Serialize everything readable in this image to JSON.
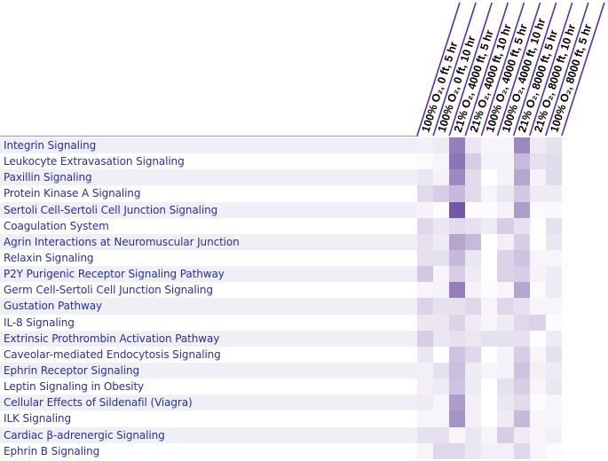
{
  "chart_data": {
    "type": "heatmap",
    "title": "",
    "colormap": {
      "low": "#ffffff",
      "high": "#5a3a96"
    },
    "columns": [
      "100% O₂, 0 ft, 5 hr",
      "100% O₂, 0 ft, 10 hr",
      "21% O₂, 4000 ft, 5 hr",
      "21% O₂, 4000 ft, 10 hr",
      "100% O₂, 4000 ft, 5 hr",
      "100% O₂, 4000 ft, 10 hr",
      "21% O₂, 8000 ft, 5 hr",
      "21% O₂, 8000 ft, 10 hr",
      "100% O₂, 8000 ft, 5 hr"
    ],
    "rows": [
      "Integrin Signaling",
      "Leukocyte Extravasation Signaling",
      "Paxillin Signaling",
      "Protein Kinase A Signaling",
      "Sertoli Cell-Sertoli Cell Junction Signaling",
      "Coagulation System",
      "Agrin Interactions at Neuromuscular Junction",
      "Relaxin Signaling",
      "P2Y Purigenic Receptor Signaling Pathway",
      "Germ Cell-Sertoli Cell Junction Signaling",
      "Gustation Pathway",
      "IL-8 Signaling",
      "Extrinsic Prothrombin Activation Pathway",
      "Caveolar-mediated Endocytosis Signaling",
      "Ephrin Receptor Signaling",
      "Leptin Signaling in Obesity",
      "Cellular Effects of Sildenafil (Viagra)",
      "ILK Signaling",
      "Cardiac β-adrenergic Signaling",
      "Ephrin B Signaling"
    ],
    "values": [
      [
        0.08,
        0.1,
        0.65,
        0.12,
        0.05,
        0.05,
        0.6,
        0.1,
        0.15
      ],
      [
        0.03,
        0.05,
        0.7,
        0.25,
        0.06,
        0.06,
        0.35,
        0.15,
        0.18
      ],
      [
        0.12,
        0.06,
        0.6,
        0.18,
        0.0,
        0.06,
        0.45,
        0.06,
        0.18
      ],
      [
        0.18,
        0.25,
        0.35,
        0.18,
        0.05,
        0.12,
        0.28,
        0.1,
        0.1
      ],
      [
        0.06,
        0.02,
        0.85,
        0.02,
        0.02,
        0.06,
        0.5,
        0.03,
        0.03
      ],
      [
        0.2,
        0.12,
        0.18,
        0.15,
        0.1,
        0.25,
        0.15,
        0.0,
        0.15
      ],
      [
        0.15,
        0.1,
        0.45,
        0.35,
        0.0,
        0.08,
        0.25,
        0.0,
        0.12
      ],
      [
        0.15,
        0.15,
        0.35,
        0.12,
        0.0,
        0.22,
        0.3,
        0.05,
        0.05
      ],
      [
        0.28,
        0.05,
        0.25,
        0.1,
        0.0,
        0.22,
        0.25,
        0.06,
        0.1
      ],
      [
        0.05,
        0.06,
        0.65,
        0.06,
        0.02,
        0.05,
        0.45,
        0.03,
        0.1
      ],
      [
        0.22,
        0.15,
        0.15,
        0.2,
        0.05,
        0.2,
        0.15,
        0.05,
        0.05
      ],
      [
        0.12,
        0.12,
        0.22,
        0.1,
        0.05,
        0.1,
        0.2,
        0.22,
        0.02
      ],
      [
        0.25,
        0.12,
        0.15,
        0.12,
        0.15,
        0.15,
        0.15,
        0.0,
        0.1
      ],
      [
        0.12,
        0.0,
        0.3,
        0.2,
        0.0,
        0.06,
        0.25,
        0.05,
        0.15
      ],
      [
        0.08,
        0.15,
        0.32,
        0.1,
        0.05,
        0.06,
        0.3,
        0.08,
        0.1
      ],
      [
        0.08,
        0.1,
        0.3,
        0.1,
        0.0,
        0.15,
        0.25,
        0.05,
        0.12
      ],
      [
        0.1,
        0.05,
        0.5,
        0.08,
        0.0,
        0.12,
        0.18,
        0.02,
        0.05
      ],
      [
        0.05,
        0.05,
        0.55,
        0.08,
        0.0,
        0.1,
        0.35,
        0.05,
        0.05
      ],
      [
        0.15,
        0.15,
        0.05,
        0.12,
        0.05,
        0.25,
        0.1,
        0.05,
        0.08
      ],
      [
        0.05,
        0.2,
        0.2,
        0.12,
        0.08,
        0.08,
        0.2,
        0.05,
        0.02
      ]
    ],
    "legend": "none",
    "grid": false
  },
  "style": {
    "header_line_color": "#5b2d9e",
    "label_color": "#2c2e9c",
    "row_stripe_color": "#eef0f6"
  }
}
